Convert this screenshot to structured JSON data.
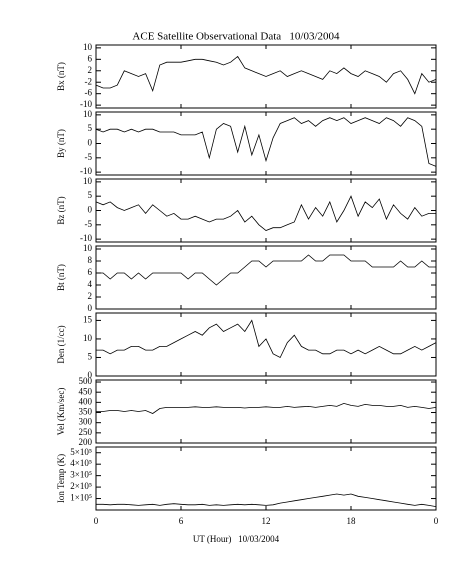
{
  "chart_data": {
    "type": "line",
    "title": "ACE Satellite Observational Data   10/03/2004",
    "x_label": "UT (Hour)   10/03/2004",
    "color": "#000000",
    "xlim": [
      0,
      24
    ],
    "xticks": [
      0,
      6,
      12,
      18,
      {
        "value": 24,
        "label": "0"
      }
    ],
    "x": [
      0,
      0.5,
      1,
      1.5,
      2,
      2.5,
      3,
      3.5,
      4,
      4.5,
      5,
      5.5,
      6,
      6.5,
      7,
      7.5,
      8,
      8.5,
      9,
      9.5,
      10,
      10.5,
      11,
      11.5,
      12,
      12.5,
      13,
      13.5,
      14,
      14.5,
      15,
      15.5,
      16,
      16.5,
      17,
      17.5,
      18,
      18.5,
      19,
      19.5,
      20,
      20.5,
      21,
      21.5,
      22,
      22.5,
      23,
      23.5,
      24
    ],
    "panels": [
      {
        "y_label": "Bx (nT)",
        "ylim": [
          -11,
          11
        ],
        "yticks": [
          10,
          6,
          2,
          -2,
          -6,
          -10
        ],
        "values": [
          -3,
          -4,
          -4,
          -3,
          2,
          1,
          0,
          1,
          -5,
          4,
          5,
          5,
          5,
          5.5,
          6,
          6,
          5.5,
          5,
          4,
          5,
          7,
          3,
          2,
          1,
          0,
          1,
          2,
          0,
          1,
          2,
          1,
          0,
          -1,
          2,
          1,
          3,
          1,
          0,
          2,
          1,
          0,
          -2,
          1,
          2,
          -1,
          -6,
          1,
          -2,
          -1
        ]
      },
      {
        "y_label": "By (nT)",
        "ylim": [
          -11,
          11
        ],
        "yticks": [
          10,
          5,
          0,
          -5,
          -10
        ],
        "values": [
          5,
          4,
          5,
          5,
          4,
          5,
          4,
          5,
          5,
          4,
          4,
          4,
          3,
          3,
          3,
          4,
          -5,
          5,
          7,
          6,
          -3,
          6,
          -4,
          3,
          -6,
          2,
          7,
          8,
          9,
          7,
          8,
          6,
          8,
          9,
          8,
          9,
          7,
          8,
          9,
          8,
          7,
          9,
          8,
          6,
          9,
          8,
          6,
          -7,
          -8
        ]
      },
      {
        "y_label": "Bz (nT)",
        "ylim": [
          -11,
          11
        ],
        "yticks": [
          10,
          5,
          0,
          -5,
          -10
        ],
        "values": [
          3,
          2,
          3,
          1,
          0,
          1,
          2,
          -1,
          2,
          0,
          -2,
          -1,
          -3,
          -3,
          -2,
          -3,
          -4,
          -3,
          -3,
          -2,
          0,
          -4,
          -2,
          -5,
          -7,
          -6,
          -6,
          -5,
          -4,
          2,
          -3,
          1,
          -2,
          3,
          -4,
          0,
          5,
          -2,
          3,
          1,
          4,
          -3,
          2,
          -1,
          -3,
          1,
          -2,
          -1,
          -1
        ]
      },
      {
        "y_label": "Bt (nT)",
        "ylim": [
          0,
          10.5
        ],
        "yticks": [
          10,
          8,
          6,
          4,
          2,
          0
        ],
        "values": [
          6,
          6,
          5,
          6,
          6,
          5,
          6,
          5,
          6,
          6,
          6,
          6,
          6,
          5,
          6,
          6,
          5,
          4,
          5,
          6,
          6,
          7,
          8,
          8,
          7,
          8,
          8,
          8,
          8,
          8,
          9,
          8,
          8,
          9,
          9,
          9,
          8,
          8,
          8,
          7,
          7,
          7,
          7,
          8,
          7,
          7,
          8,
          7,
          7
        ]
      },
      {
        "y_label": "Den (1/cc)",
        "ylim": [
          0,
          17
        ],
        "yticks": [
          15,
          10,
          5,
          0
        ],
        "values": [
          7,
          7,
          6,
          7,
          7,
          8,
          8,
          7,
          7,
          8,
          8,
          9,
          10,
          11,
          12,
          11,
          13,
          14,
          12,
          13,
          14,
          12,
          15,
          8,
          10,
          6,
          5,
          9,
          11,
          8,
          7,
          7,
          6,
          6,
          7,
          7,
          6,
          7,
          6,
          7,
          8,
          7,
          6,
          6,
          7,
          8,
          7,
          8,
          9
        ]
      },
      {
        "y_label": "Vel (Km/sec)",
        "ylim": [
          200,
          510
        ],
        "yticks": [
          500,
          450,
          400,
          350,
          300,
          250,
          200
        ],
        "values": [
          355,
          355,
          360,
          360,
          355,
          360,
          355,
          360,
          345,
          370,
          375,
          375,
          375,
          375,
          378,
          375,
          375,
          378,
          375,
          375,
          375,
          372,
          375,
          375,
          378,
          375,
          375,
          380,
          375,
          378,
          380,
          375,
          380,
          385,
          380,
          395,
          385,
          380,
          390,
          385,
          385,
          380,
          380,
          385,
          375,
          380,
          375,
          370,
          375
        ]
      },
      {
        "y_label": "Ion Temp (K)",
        "ylim": [
          0,
          550000
        ],
        "yticks": [
          {
            "value": 500000,
            "label": "5×10⁵"
          },
          {
            "value": 400000,
            "label": "4×10⁵"
          },
          {
            "value": 300000,
            "label": "3×10⁵"
          },
          {
            "value": 200000,
            "label": "2×10⁵"
          },
          {
            "value": 100000,
            "label": "1×10⁵"
          }
        ],
        "values": [
          50000,
          50000,
          45000,
          50000,
          50000,
          45000,
          40000,
          45000,
          50000,
          40000,
          50000,
          55000,
          50000,
          45000,
          45000,
          50000,
          40000,
          45000,
          40000,
          45000,
          50000,
          45000,
          50000,
          45000,
          40000,
          45000,
          60000,
          70000,
          80000,
          90000,
          100000,
          110000,
          120000,
          130000,
          140000,
          130000,
          140000,
          120000,
          110000,
          100000,
          90000,
          80000,
          70000,
          60000,
          50000,
          40000,
          50000,
          40000,
          30000
        ]
      }
    ]
  }
}
